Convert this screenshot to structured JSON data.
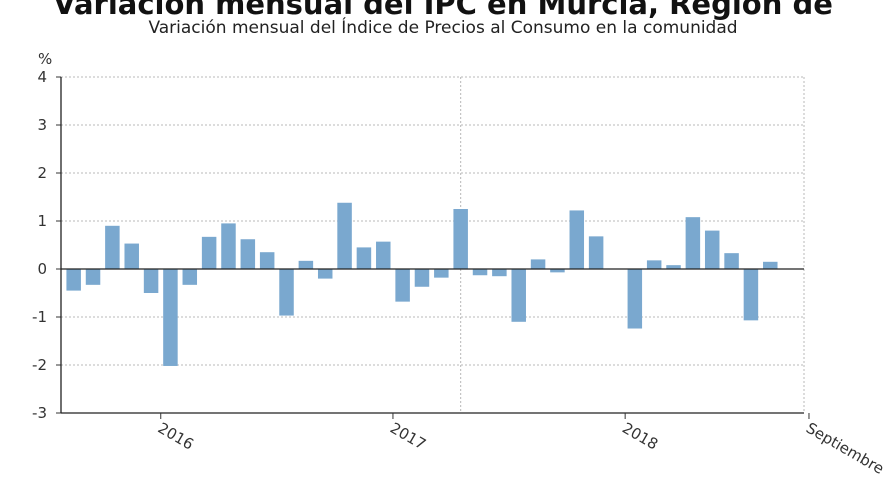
{
  "chart_data": {
    "type": "bar",
    "title": "Variación mensual del IPC en Murcia, Región de",
    "subtitle": "Variación mensual del Índice de Precios al Consumo en la comunidad",
    "ylabel": "%",
    "ylim": [
      -3,
      4
    ],
    "yticks": [
      4,
      3,
      2,
      1,
      0,
      -1,
      -2,
      -3
    ],
    "grid": true,
    "bar_color": "#7aa8cf",
    "x_tick_labels": [
      {
        "label": "2016",
        "index": 4.5
      },
      {
        "label": "2017",
        "index": 16.5
      },
      {
        "label": "2018",
        "index": 28.5
      },
      {
        "label": "Septiembre",
        "index": 38
      }
    ],
    "series": [
      {
        "name": "Variación mensual",
        "values": [
          -0.45,
          -0.33,
          0.9,
          0.53,
          -0.5,
          -2.02,
          -0.33,
          0.67,
          0.95,
          0.62,
          0.35,
          -0.97,
          0.17,
          -0.2,
          1.38,
          0.45,
          0.57,
          -0.68,
          -0.37,
          -0.18,
          1.25,
          -0.13,
          -0.15,
          -1.1,
          0.2,
          -0.07,
          1.22,
          0.68,
          0.0,
          -1.24,
          0.18,
          0.08,
          1.08,
          0.8,
          0.33,
          -1.07,
          0.15
        ]
      }
    ]
  }
}
